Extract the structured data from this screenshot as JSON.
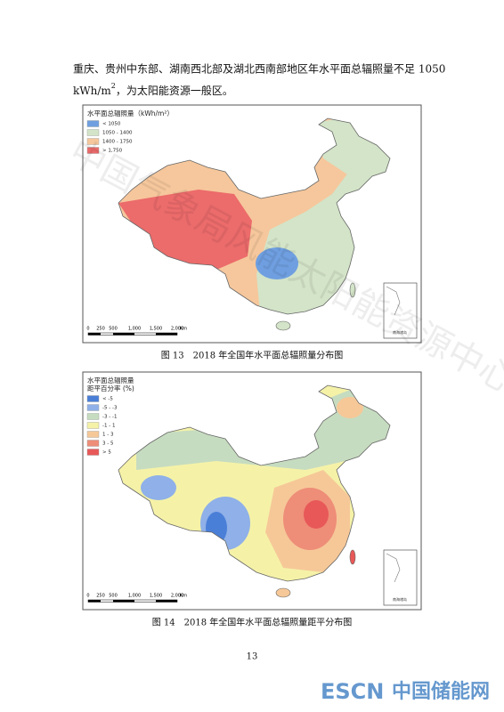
{
  "paragraph": {
    "line1": "重庆、贵州中东部、湖南西北部及湖北西南部地区年水平面总辐照量不足 1050",
    "line2_start": "kWh/m",
    "line2_sup": "2",
    "line2_end": "，为太阳能资源一般区。"
  },
  "figures": [
    {
      "legend": {
        "title": [
          "水平面总辐照量（kWh/m²）"
        ],
        "items": [
          {
            "label": "< 1050",
            "color": "#6f9fe0"
          },
          {
            "label": "1050 - 1400",
            "color": "#d3e4c8"
          },
          {
            "label": "1400 - 1750",
            "color": "#f6c79c"
          },
          {
            "label": "> 1,750",
            "color": "#ec6b6b"
          }
        ]
      },
      "scale_bar": [
        "0",
        "250",
        "500",
        "1,000",
        "1,500",
        "2,000",
        "Km"
      ],
      "inset": "南海诸岛",
      "caption": "图 13　2018 年全国年水平面总辐照量分布图"
    },
    {
      "legend": {
        "title": [
          "水平面总辐照量",
          "距平百分率 (%)"
        ],
        "items": [
          {
            "label": "< -5",
            "color": "#4a7fd8"
          },
          {
            "label": "-5 - -3",
            "color": "#8fb0e8"
          },
          {
            "label": "-3 - -1",
            "color": "#c6dcc0"
          },
          {
            "label": "-1 - 1",
            "color": "#f5f2a8"
          },
          {
            "label": "1 - 3",
            "color": "#f6c898"
          },
          {
            "label": "3 - 5",
            "color": "#ee8d78"
          },
          {
            "label": "> 5",
            "color": "#e85858"
          }
        ]
      },
      "scale_bar": [
        "0",
        "250",
        "500",
        "1,000",
        "1,500",
        "2,000",
        "Km"
      ],
      "inset": "南海诸岛",
      "caption": "图 14　2018 年全国年水平面总辐照量距平分布图"
    }
  ],
  "watermark": "中国气象局风能太阳能资源中心",
  "page_number": "13",
  "logo": {
    "brand": "ESCN",
    "site": "中国储能网"
  }
}
